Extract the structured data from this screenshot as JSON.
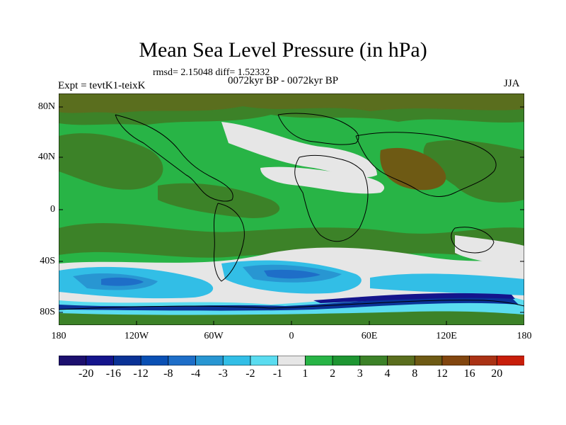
{
  "title": "Mean Sea Level Pressure (in hPa)",
  "stats": "rmsd= 2.15048  diff= 1.52332",
  "expt": "Expt = tevtK1-teixK",
  "period": "0072kyr BP - 0072kyr BP",
  "season": "JJA",
  "lat_labels": [
    "80N",
    "40N",
    "0",
    "40S",
    "80S"
  ],
  "lon_labels": [
    "180",
    "120W",
    "60W",
    "0",
    "60E",
    "120E",
    "180"
  ],
  "colorbar": {
    "labels": [
      "-20",
      "-16",
      "-12",
      "-8",
      "-4",
      "-3",
      "-2",
      "-1",
      "1",
      "2",
      "3",
      "4",
      "8",
      "12",
      "16",
      "20"
    ],
    "colors": [
      "#1c0f6e",
      "#14148c",
      "#0a3296",
      "#0a50b4",
      "#1e6ec8",
      "#2896d2",
      "#32bee6",
      "#5adcf0",
      "#e6e6e6",
      "#28b446",
      "#1e9632",
      "#3c8228",
      "#5a6e1e",
      "#6e5a14",
      "#82460f",
      "#aa3214",
      "#c81e0a"
    ]
  },
  "colors": {
    "land_outline": "#000000",
    "background": "#ffffff"
  }
}
